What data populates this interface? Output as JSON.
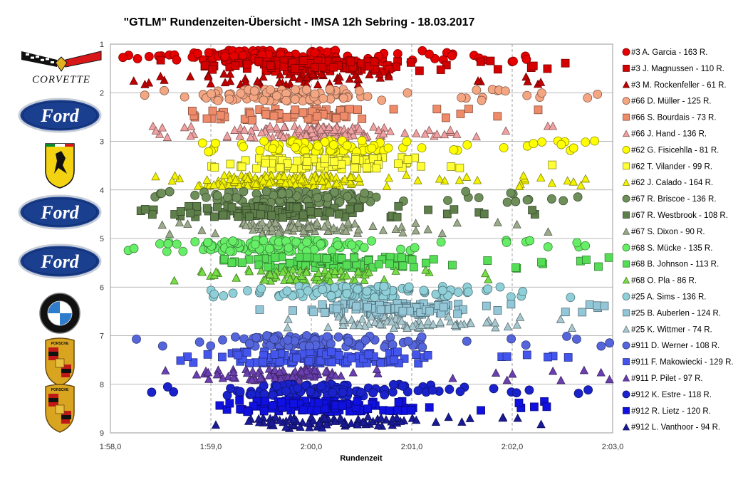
{
  "chart_data": {
    "type": "scatter",
    "title": "\"GTLM\"  Rundenzeiten-Übersicht   - IMSA  12h  Sebring   - 18.03.2017",
    "xlabel": "Rundenzeit",
    "ylabel": "",
    "x_unit": "seconds",
    "xlim": [
      118,
      123
    ],
    "ylim": [
      1,
      9
    ],
    "y_reversed": true,
    "x_ticks": [
      {
        "value": 118,
        "label": "1:58,0"
      },
      {
        "value": 119,
        "label": "1:59,0"
      },
      {
        "value": 120,
        "label": "2:00,0"
      },
      {
        "value": 121,
        "label": "2:01,0"
      },
      {
        "value": 122,
        "label": "2:02,0"
      },
      {
        "value": 123,
        "label": "2:03,0"
      }
    ],
    "y_ticks": [
      {
        "value": 1,
        "label": "1"
      },
      {
        "value": 2,
        "label": "2"
      },
      {
        "value": 3,
        "label": "3"
      },
      {
        "value": 4,
        "label": "4"
      },
      {
        "value": 5,
        "label": "5"
      },
      {
        "value": 6,
        "label": "6"
      },
      {
        "value": 7,
        "label": "7"
      },
      {
        "value": 8,
        "label": "8"
      },
      {
        "value": 9,
        "label": "9"
      }
    ],
    "grid": true,
    "legend_position": "right",
    "teams": [
      {
        "logo": "corvette",
        "logo_text": "CORVETTE"
      },
      {
        "logo": "ford",
        "logo_text": "Ford"
      },
      {
        "logo": "ferrari",
        "logo_text": ""
      },
      {
        "logo": "ford",
        "logo_text": "Ford"
      },
      {
        "logo": "ford",
        "logo_text": "Ford"
      },
      {
        "logo": "bmw",
        "logo_text": "BMW"
      },
      {
        "logo": "porsche",
        "logo_text": "PORSCHE"
      },
      {
        "logo": "porsche",
        "logo_text": "PORSCHE"
      }
    ],
    "series": [
      {
        "name": "#3 A. Garcia - 163 R.",
        "marker": "circle",
        "color": "#e60000",
        "y": 1.25,
        "laps": 163,
        "x_range": [
          118.05,
          122.15
        ],
        "x_median": 119.6
      },
      {
        "name": "#3 J. Magnussen - 110 R.",
        "marker": "square",
        "color": "#d40000",
        "y": 1.45,
        "laps": 110,
        "x_range": [
          118.45,
          122.9
        ],
        "x_median": 120.0
      },
      {
        "name": "#3 M. Rockenfeller - 61 R.",
        "marker": "triangle",
        "color": "#c00000",
        "y": 1.72,
        "laps": 61,
        "x_range": [
          118.2,
          122.5
        ],
        "x_median": 119.9
      },
      {
        "name": "#66 D. Müller - 125 R.",
        "marker": "circle",
        "color": "#f4a582",
        "y": 2.05,
        "laps": 125,
        "x_range": [
          118.2,
          122.9
        ],
        "x_median": 119.7
      },
      {
        "name": "#66 S. Bourdais - 73 R.",
        "marker": "square",
        "color": "#f08b6a",
        "y": 2.45,
        "laps": 73,
        "x_range": [
          118.35,
          122.3
        ],
        "x_median": 119.9
      },
      {
        "name": "#66 J. Hand - 136 R.",
        "marker": "triangle",
        "color": "#f0a0a0",
        "y": 2.8,
        "laps": 136,
        "x_range": [
          118.15,
          122.45
        ],
        "x_median": 120.0
      },
      {
        "name": "#62 G. Fisicehlla - 81 R.",
        "marker": "circle",
        "color": "#ffff00",
        "y": 3.1,
        "laps": 81,
        "x_range": [
          118.9,
          122.85
        ],
        "x_median": 120.2
      },
      {
        "name": "#62 T. Vilander - 99 R.",
        "marker": "square",
        "color": "#ffff33",
        "y": 3.45,
        "laps": 99,
        "x_range": [
          118.8,
          122.9
        ],
        "x_median": 120.1
      },
      {
        "name": "#62 J. Calado - 164 R.",
        "marker": "triangle",
        "color": "#f2f200",
        "y": 3.8,
        "laps": 164,
        "x_range": [
          118.45,
          122.9
        ],
        "x_median": 119.8
      },
      {
        "name": "#67 R. Briscoe - 136 R.",
        "marker": "circle",
        "color": "#6e8f5a",
        "y": 4.15,
        "laps": 136,
        "x_range": [
          118.4,
          122.85
        ],
        "x_median": 119.9
      },
      {
        "name": "#67 R. Westbrook - 108 R.",
        "marker": "square",
        "color": "#5e7f4a",
        "y": 4.45,
        "laps": 108,
        "x_range": [
          118.05,
          122.5
        ],
        "x_median": 119.7
      },
      {
        "name": "#67 S. Dixon - 90 R.",
        "marker": "triangle",
        "color": "#9aaa8a",
        "y": 4.78,
        "laps": 90,
        "x_range": [
          118.45,
          122.5
        ],
        "x_median": 119.9
      },
      {
        "name": "#68 S. Mücke - 135 R.",
        "marker": "circle",
        "color": "#66ee66",
        "y": 5.15,
        "laps": 135,
        "x_range": [
          118.05,
          122.85
        ],
        "x_median": 119.6
      },
      {
        "name": "#68 B. Johnson - 113 R.",
        "marker": "square",
        "color": "#55dd55",
        "y": 5.5,
        "laps": 113,
        "x_range": [
          118.95,
          123.0
        ],
        "x_median": 120.2
      },
      {
        "name": "#68 O. Pla - 86 R.",
        "marker": "triangle",
        "color": "#77dd44",
        "y": 5.75,
        "laps": 86,
        "x_range": [
          118.5,
          122.4
        ],
        "x_median": 120.0
      },
      {
        "name": "#25 A. Sims - 136 R.",
        "marker": "circle",
        "color": "#8ecfd8",
        "y": 6.1,
        "laps": 136,
        "x_range": [
          118.85,
          122.75
        ],
        "x_median": 120.5
      },
      {
        "name": "#25 B. Auberlen - 124 R.",
        "marker": "square",
        "color": "#93c6d6",
        "y": 6.45,
        "laps": 124,
        "x_range": [
          119.4,
          123.0
        ],
        "x_median": 120.8
      },
      {
        "name": "#25 K. Wittmer - 74 R.",
        "marker": "triangle",
        "color": "#a8c8d0",
        "y": 6.72,
        "laps": 74,
        "x_range": [
          119.65,
          122.6
        ],
        "x_median": 120.9
      },
      {
        "name": "#911 D. Werner - 108 R.",
        "marker": "circle",
        "color": "#5566dd",
        "y": 7.12,
        "laps": 108,
        "x_range": [
          118.25,
          123.0
        ],
        "x_median": 120.0
      },
      {
        "name": "#911 F. Makowiecki - 129 R.",
        "marker": "square",
        "color": "#4455ee",
        "y": 7.45,
        "laps": 129,
        "x_range": [
          118.5,
          122.8
        ],
        "x_median": 120.0
      },
      {
        "name": "#911 P. Pilet - 97 R.",
        "marker": "triangle",
        "color": "#6a3fb0",
        "y": 7.8,
        "laps": 97,
        "x_range": [
          117.85,
          123.0
        ],
        "x_median": 119.7
      },
      {
        "name": "#912 K. Estre - 118 R.",
        "marker": "circle",
        "color": "#1a22cc",
        "y": 8.12,
        "laps": 118,
        "x_range": [
          118.35,
          122.8
        ],
        "x_median": 120.1
      },
      {
        "name": "#912 R. Lietz - 120 R.",
        "marker": "square",
        "color": "#1010e0",
        "y": 8.45,
        "laps": 120,
        "x_range": [
          118.5,
          122.6
        ],
        "x_median": 120.0
      },
      {
        "name": "#912 L. Vanthoor - 94 R.",
        "marker": "triangle",
        "color": "#1a1a99",
        "y": 8.78,
        "laps": 94,
        "x_range": [
          118.7,
          122.6
        ],
        "x_median": 120.1
      }
    ]
  }
}
